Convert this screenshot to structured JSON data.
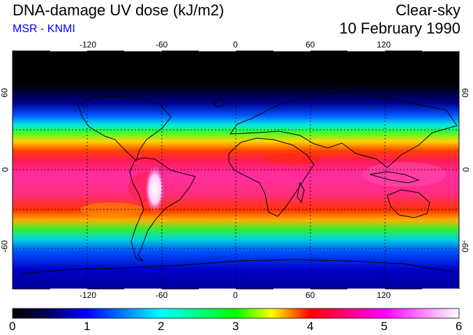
{
  "header": {
    "title": "DNA-damage UV dose (kJ/m2)",
    "source": "MSR - KNMI",
    "condition": "Clear-sky",
    "date": "10 February 1990"
  },
  "map": {
    "lon_ticks": [
      "-120",
      "-60",
      "0",
      "60",
      "120"
    ],
    "lat_ticks_left": [
      "60",
      "0",
      "-60"
    ],
    "lat_ticks_right": [
      "60",
      "0",
      "-60"
    ]
  },
  "colorbar": {
    "ticks": [
      "0",
      "1",
      "2",
      "3",
      "4",
      "5",
      "6"
    ],
    "colors": [
      "#000000",
      "#0000ff",
      "#00ffff",
      "#00ff00",
      "#ffff00",
      "#ff0000",
      "#ff00ff",
      "#ffffff"
    ]
  }
}
